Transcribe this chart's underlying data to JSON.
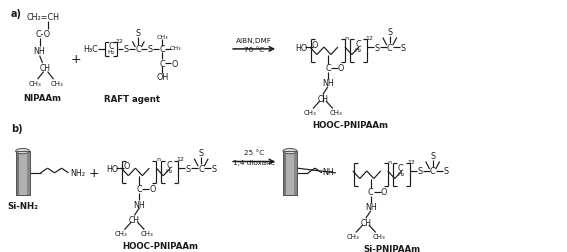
{
  "bg_color": "#ffffff",
  "fig_width": 5.67,
  "fig_height": 2.53,
  "dpi": 100,
  "label_a": "a)",
  "label_b": "b)",
  "reaction_a_line1": "AIBN,DMF",
  "reaction_a_line2": "70 °C",
  "reaction_b_line1": "25 °C",
  "reaction_b_line2": "1,4 dioxane",
  "label_nipaam": "NIPAAm",
  "label_raft": "RAFT agent",
  "label_hooc_pnipaam": "HOOC-PNIPAAm",
  "label_si_nh2": "Si-NH₂",
  "label_si_pnipaam": "Si-PNIPAAm",
  "text_color": "#1a1a1a",
  "line_color": "#1a1a1a",
  "lw": 0.85
}
